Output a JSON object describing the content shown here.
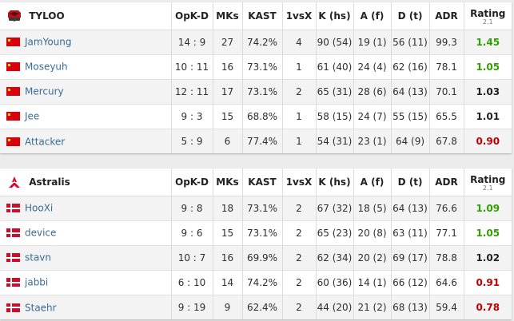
{
  "columns": {
    "opkd": "OpK-D",
    "mks": "MKs",
    "kast": "KAST",
    "clutch": "1vsX",
    "kills": "K (hs)",
    "assists": "A (f)",
    "deaths": "D (t)",
    "adr": "ADR",
    "rating": "Rating",
    "rating_version": "2.1"
  },
  "colors": {
    "rating_good": "#31a100",
    "rating_bad": "#c30000",
    "rating_neutral": "#222222",
    "player_link": "#3a6c96"
  },
  "teams": [
    {
      "name": "TYLOO",
      "logo_icon": "tyloo-logo-icon",
      "players": [
        {
          "flag": "china-flag-icon",
          "name": "JamYoung",
          "opkd": "14 : 9",
          "mks": "27",
          "kast": "74.2%",
          "clutch": "4",
          "kills": "90 (54)",
          "assists": "19 (1)",
          "deaths": "56 (11)",
          "adr": "99.3",
          "rating": "1.45",
          "rating_level": "good"
        },
        {
          "flag": "china-flag-icon",
          "name": "Moseyuh",
          "opkd": "10 : 11",
          "mks": "16",
          "kast": "73.1%",
          "clutch": "1",
          "kills": "61 (40)",
          "assists": "24 (4)",
          "deaths": "62 (16)",
          "adr": "78.1",
          "rating": "1.05",
          "rating_level": "good"
        },
        {
          "flag": "china-flag-icon",
          "name": "Mercury",
          "opkd": "12 : 11",
          "mks": "17",
          "kast": "73.1%",
          "clutch": "2",
          "kills": "65 (31)",
          "assists": "28 (6)",
          "deaths": "64 (13)",
          "adr": "70.1",
          "rating": "1.03",
          "rating_level": "neutral"
        },
        {
          "flag": "china-flag-icon",
          "name": "Jee",
          "opkd": "9 : 3",
          "mks": "15",
          "kast": "68.8%",
          "clutch": "1",
          "kills": "58 (15)",
          "assists": "24 (7)",
          "deaths": "55 (15)",
          "adr": "65.5",
          "rating": "1.01",
          "rating_level": "neutral"
        },
        {
          "flag": "china-flag-icon",
          "name": "Attacker",
          "opkd": "5 : 9",
          "mks": "6",
          "kast": "77.4%",
          "clutch": "1",
          "kills": "54 (31)",
          "assists": "23 (1)",
          "deaths": "64 (9)",
          "adr": "67.8",
          "rating": "0.90",
          "rating_level": "bad"
        }
      ]
    },
    {
      "name": "Astralis",
      "logo_icon": "astralis-logo-icon",
      "players": [
        {
          "flag": "denmark-flag-icon",
          "name": "HooXi",
          "opkd": "9 : 8",
          "mks": "18",
          "kast": "73.1%",
          "clutch": "2",
          "kills": "67 (32)",
          "assists": "18 (5)",
          "deaths": "64 (13)",
          "adr": "76.6",
          "rating": "1.09",
          "rating_level": "good"
        },
        {
          "flag": "denmark-flag-icon",
          "name": "device",
          "opkd": "9 : 6",
          "mks": "15",
          "kast": "73.1%",
          "clutch": "2",
          "kills": "65 (23)",
          "assists": "20 (8)",
          "deaths": "63 (11)",
          "adr": "77.1",
          "rating": "1.05",
          "rating_level": "good"
        },
        {
          "flag": "denmark-flag-icon",
          "name": "stavn",
          "opkd": "10 : 7",
          "mks": "16",
          "kast": "69.9%",
          "clutch": "2",
          "kills": "62 (34)",
          "assists": "20 (2)",
          "deaths": "69 (17)",
          "adr": "78.8",
          "rating": "1.02",
          "rating_level": "neutral"
        },
        {
          "flag": "denmark-flag-icon",
          "name": "jabbi",
          "opkd": "6 : 10",
          "mks": "14",
          "kast": "74.2%",
          "clutch": "2",
          "kills": "60 (36)",
          "assists": "14 (1)",
          "deaths": "66 (12)",
          "adr": "64.6",
          "rating": "0.91",
          "rating_level": "bad"
        },
        {
          "flag": "denmark-flag-icon",
          "name": "Staehr",
          "opkd": "9 : 19",
          "mks": "9",
          "kast": "62.4%",
          "clutch": "2",
          "kills": "44 (20)",
          "assists": "21 (2)",
          "deaths": "68 (13)",
          "adr": "59.4",
          "rating": "0.78",
          "rating_level": "bad"
        }
      ]
    }
  ]
}
